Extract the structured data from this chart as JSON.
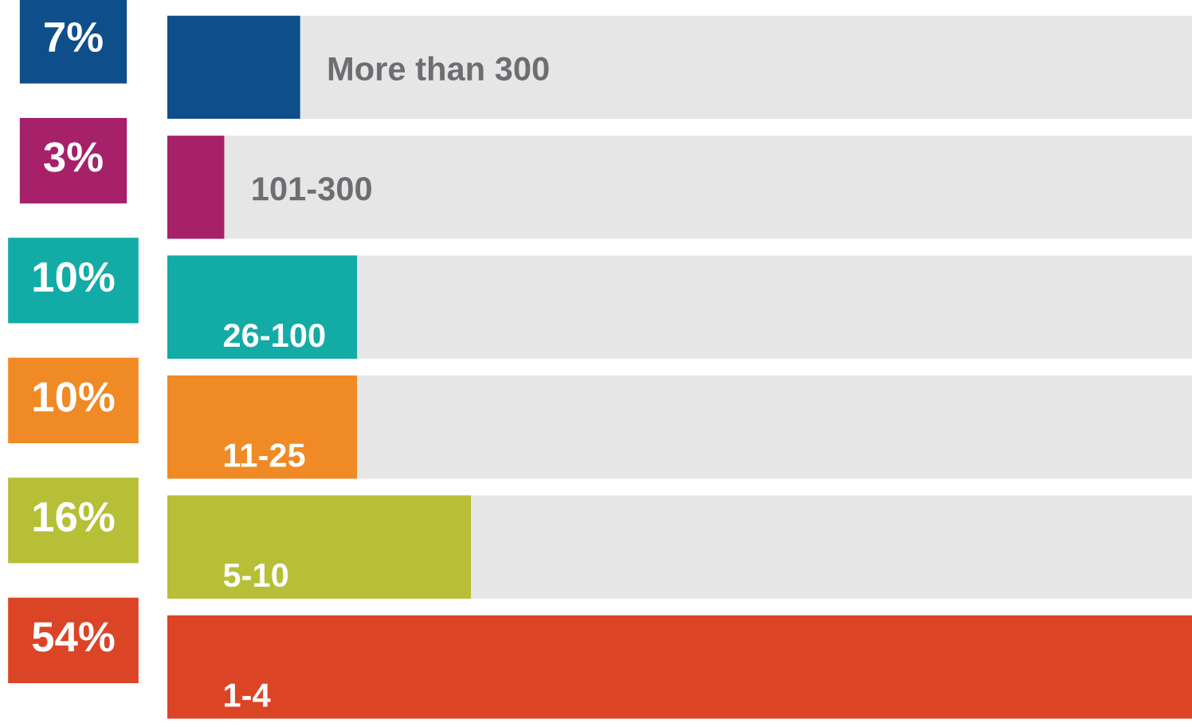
{
  "chart_data": {
    "type": "bar",
    "orientation": "horizontal",
    "categories": [
      "More than 300",
      "101-300",
      "26-100",
      "11-25",
      "5-10",
      "1-4"
    ],
    "values": [
      7,
      3,
      10,
      10,
      16,
      54
    ],
    "value_labels": [
      "7%",
      "3%",
      "10%",
      "10%",
      "16%",
      "54%"
    ],
    "colors": [
      "#0e4f8b",
      "#a6206a",
      "#13aba6",
      "#f08a24",
      "#b6bf35",
      "#dc4426"
    ],
    "xlim": [
      0,
      54
    ],
    "tick_labels": false,
    "legend": false
  }
}
